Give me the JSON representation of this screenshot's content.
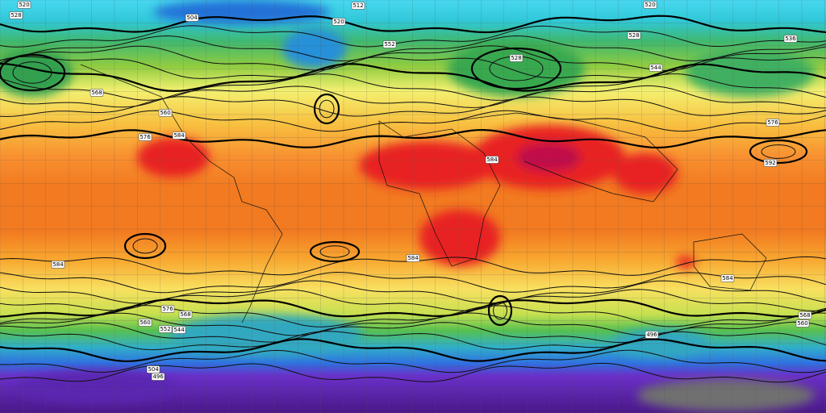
{
  "contour_labels": [
    "520",
    "528",
    "512",
    "520",
    "504",
    "520",
    "528",
    "536",
    "528",
    "552",
    "544",
    "560",
    "568",
    "576",
    "584",
    "592",
    "584",
    "584",
    "584",
    "576",
    "568",
    "560",
    "552",
    "544",
    "496",
    "504",
    "496",
    "560",
    "568",
    "584",
    "576"
  ]
}
